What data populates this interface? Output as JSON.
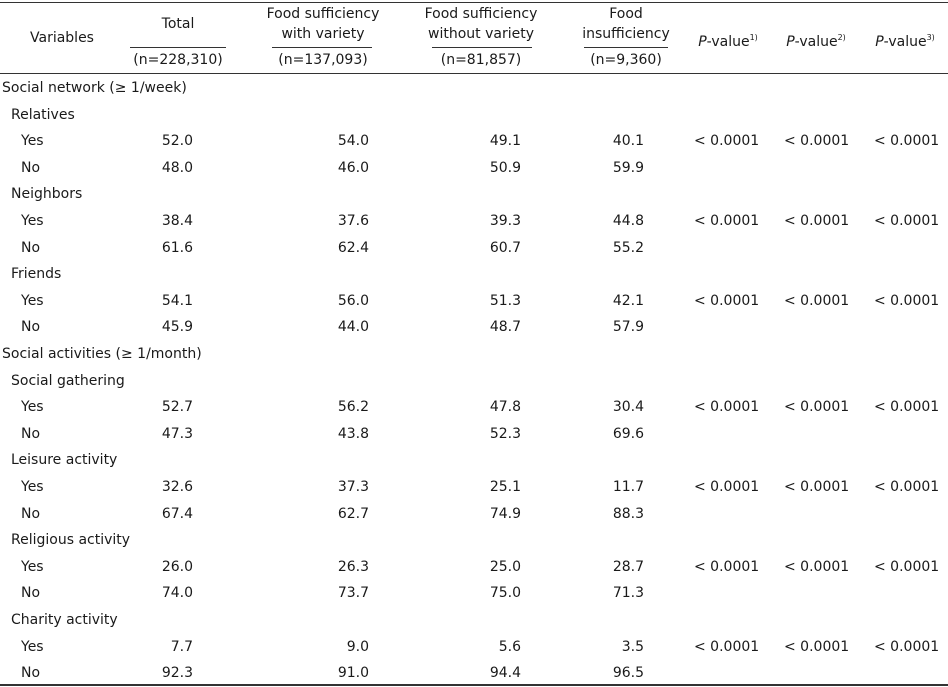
{
  "header": {
    "variables": "Variables",
    "total": "Total",
    "total_n": "(n=228,310)",
    "col1": "Food sufficiency\nwith variety",
    "col1_n": "(n=137,093)",
    "col2": "Food sufficiency\nwithout variety",
    "col2_n": "(n=81,857)",
    "col3": "Food\ninsufficiency",
    "col3_n": "(n=9,360)",
    "p1_label": "P",
    "p1_rest": "-value",
    "p1_sup": "1)",
    "p2_label": "P",
    "p2_rest": "-value",
    "p2_sup": "2)",
    "p3_label": "P",
    "p3_rest": "-value",
    "p3_sup": "3)"
  },
  "sections": [
    {
      "title": "Social network (≥ 1/week)",
      "groups": [
        {
          "name": "Relatives",
          "rows": [
            {
              "label": "Yes",
              "values": [
                "52.0",
                "54.0",
                "49.1",
                "40.1"
              ],
              "p": [
                "< 0.0001",
                "< 0.0001",
                "< 0.0001"
              ]
            },
            {
              "label": "No",
              "values": [
                "48.0",
                "46.0",
                "50.9",
                "59.9"
              ],
              "p": [
                "",
                "",
                ""
              ]
            }
          ]
        },
        {
          "name": "Neighbors",
          "rows": [
            {
              "label": "Yes",
              "values": [
                "38.4",
                "37.6",
                "39.3",
                "44.8"
              ],
              "p": [
                "< 0.0001",
                "< 0.0001",
                "< 0.0001"
              ]
            },
            {
              "label": "No",
              "values": [
                "61.6",
                "62.4",
                "60.7",
                "55.2"
              ],
              "p": [
                "",
                "",
                ""
              ]
            }
          ]
        },
        {
          "name": "Friends",
          "rows": [
            {
              "label": "Yes",
              "values": [
                "54.1",
                "56.0",
                "51.3",
                "42.1"
              ],
              "p": [
                "< 0.0001",
                "< 0.0001",
                "< 0.0001"
              ]
            },
            {
              "label": "No",
              "values": [
                "45.9",
                "44.0",
                "48.7",
                "57.9"
              ],
              "p": [
                "",
                "",
                ""
              ]
            }
          ]
        }
      ]
    },
    {
      "title": "Social activities (≥ 1/month)",
      "groups": [
        {
          "name": "Social gathering",
          "rows": [
            {
              "label": "Yes",
              "values": [
                "52.7",
                "56.2",
                "47.8",
                "30.4"
              ],
              "p": [
                "< 0.0001",
                "< 0.0001",
                "< 0.0001"
              ]
            },
            {
              "label": "No",
              "values": [
                "47.3",
                "43.8",
                "52.3",
                "69.6"
              ],
              "p": [
                "",
                "",
                ""
              ]
            }
          ]
        },
        {
          "name": "Leisure activity",
          "rows": [
            {
              "label": "Yes",
              "values": [
                "32.6",
                "37.3",
                "25.1",
                "11.7"
              ],
              "p": [
                "< 0.0001",
                "< 0.0001",
                "< 0.0001"
              ]
            },
            {
              "label": "No",
              "values": [
                "67.4",
                "62.7",
                "74.9",
                "88.3"
              ],
              "p": [
                "",
                "",
                ""
              ]
            }
          ]
        },
        {
          "name": "Religious activity",
          "rows": [
            {
              "label": "Yes",
              "values": [
                "26.0",
                "26.3",
                "25.0",
                "28.7"
              ],
              "p": [
                "< 0.0001",
                "< 0.0001",
                "< 0.0001"
              ]
            },
            {
              "label": "No",
              "values": [
                "74.0",
                "73.7",
                "75.0",
                "71.3"
              ],
              "p": [
                "",
                "",
                ""
              ]
            }
          ]
        },
        {
          "name": "Charity activity",
          "rows": [
            {
              "label": "Yes",
              "values": [
                "7.7",
                "9.0",
                "5.6",
                "3.5"
              ],
              "p": [
                "< 0.0001",
                "< 0.0001",
                "< 0.0001"
              ]
            },
            {
              "label": "No",
              "values": [
                "92.3",
                "91.0",
                "94.4",
                "96.5"
              ],
              "p": [
                "",
                "",
                ""
              ]
            }
          ]
        }
      ]
    }
  ]
}
